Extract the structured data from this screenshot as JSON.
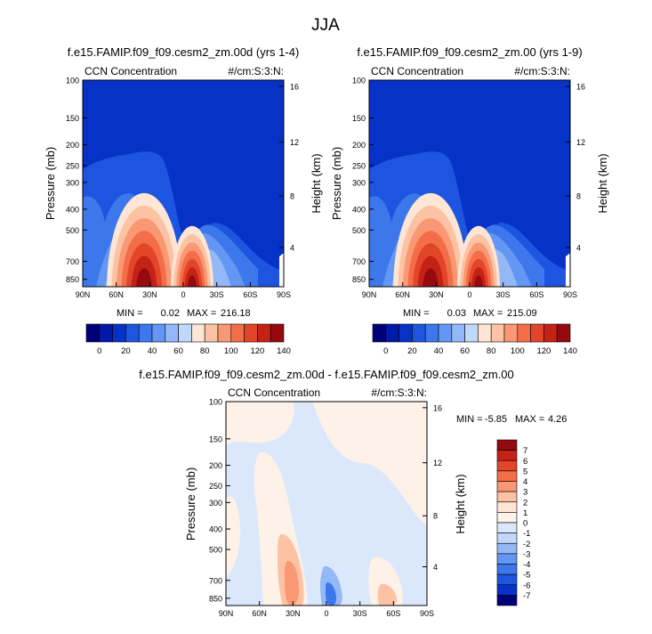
{
  "page_title": "JJA",
  "colors": {
    "background": "#ffffff",
    "axis": "#000000",
    "panel_base": "#0a2fb8"
  },
  "chart_data": [
    {
      "type": "heatmap",
      "name": "panel-1",
      "title": "f.e15.FAMIP.f09_f09.cesm2_zm.00d (yrs 1-4)",
      "variable_label": "CCN Concentration",
      "units_label": "#/cm:S:3:N:",
      "ylabel": "Pressure (mb)",
      "ylabel_right": "Height (km)",
      "x_ticks": [
        "90N",
        "60N",
        "30N",
        "0",
        "30S",
        "60S",
        "90S"
      ],
      "y_ticks": [
        "100",
        "150",
        "200",
        "250",
        "300",
        "400",
        "500",
        "700",
        "850"
      ],
      "height_ticks": [
        "16",
        "12",
        "8",
        "4"
      ],
      "ylim": [
        1000,
        100
      ],
      "min_label": "MIN =",
      "min_value": "0.02",
      "max_label": "MAX =",
      "max_value": "216.18",
      "peaks": [
        {
          "lat": 35,
          "p_top": 330,
          "peak": 216
        },
        {
          "lat": -8,
          "p_top": 470,
          "peak": 140
        }
      ],
      "colorbar": {
        "orientation": "horizontal",
        "levels": [
          "0",
          "20",
          "40",
          "60",
          "80",
          "100",
          "120",
          "140"
        ],
        "colors": [
          "#00007a",
          "#0019a8",
          "#0732c8",
          "#1e55e0",
          "#3c78ec",
          "#6496f4",
          "#93b8f8",
          "#c2d8fb",
          "#fde6d5",
          "#fcc2a3",
          "#f99873",
          "#f36e48",
          "#e3452a",
          "#c52216",
          "#96090f"
        ]
      }
    },
    {
      "type": "heatmap",
      "name": "panel-2",
      "title": "f.e15.FAMIP.f09_f09.cesm2_zm.00 (yrs 1-9)",
      "variable_label": "CCN Concentration",
      "units_label": "#/cm:S:3:N:",
      "ylabel": "Pressure (mb)",
      "ylabel_right": "Height (km)",
      "x_ticks": [
        "90N",
        "60N",
        "30N",
        "0",
        "30S",
        "60S",
        "90S"
      ],
      "y_ticks": [
        "100",
        "150",
        "200",
        "250",
        "300",
        "400",
        "500",
        "700",
        "850"
      ],
      "height_ticks": [
        "16",
        "12",
        "8",
        "4"
      ],
      "ylim": [
        1000,
        100
      ],
      "min_label": "MIN =",
      "min_value": "0.03",
      "max_label": "MAX =",
      "max_value": "215.09",
      "peaks": [
        {
          "lat": 35,
          "p_top": 330,
          "peak": 215
        },
        {
          "lat": -8,
          "p_top": 470,
          "peak": 140
        }
      ],
      "colorbar": {
        "orientation": "horizontal",
        "levels": [
          "0",
          "20",
          "40",
          "60",
          "80",
          "100",
          "120",
          "140"
        ],
        "colors": [
          "#00007a",
          "#0019a8",
          "#0732c8",
          "#1e55e0",
          "#3c78ec",
          "#6496f4",
          "#93b8f8",
          "#c2d8fb",
          "#fde6d5",
          "#fcc2a3",
          "#f99873",
          "#f36e48",
          "#e3452a",
          "#c52216",
          "#96090f"
        ]
      }
    },
    {
      "type": "heatmap",
      "name": "difference",
      "title": "f.e15.FAMIP.f09_f09.cesm2_zm.00d - f.e15.FAMIP.f09_f09.cesm2_zm.00",
      "variable_label": "CCN Concentration",
      "units_label": "#/cm:S:3:N:",
      "ylabel": "Pressure (mb)",
      "ylabel_right": "Height (km)",
      "x_ticks": [
        "90N",
        "60N",
        "30N",
        "0",
        "30S",
        "60S",
        "90S"
      ],
      "y_ticks": [
        "100",
        "150",
        "200",
        "250",
        "300",
        "400",
        "500",
        "700",
        "850"
      ],
      "height_ticks": [
        "16",
        "12",
        "8",
        "4"
      ],
      "ylim": [
        1000,
        100
      ],
      "min_label": "MIN =",
      "min_value": "-5.85",
      "max_label": "MAX =",
      "max_value": "4.26",
      "colorbar": {
        "orientation": "vertical",
        "levels": [
          "7",
          "6",
          "5",
          "4",
          "3",
          "2",
          "1",
          "0",
          "-1",
          "-2",
          "-3",
          "-4",
          "-5",
          "-6",
          "-7"
        ],
        "colors": [
          "#96090f",
          "#c52216",
          "#e3452a",
          "#f36e48",
          "#f99873",
          "#fcc2a3",
          "#fde6d5",
          "#fdf1e8",
          "#dbe8fb",
          "#c2d8fb",
          "#93b8f8",
          "#6496f4",
          "#3c78ec",
          "#1e55e0",
          "#0732c8",
          "#00007a"
        ]
      }
    }
  ]
}
